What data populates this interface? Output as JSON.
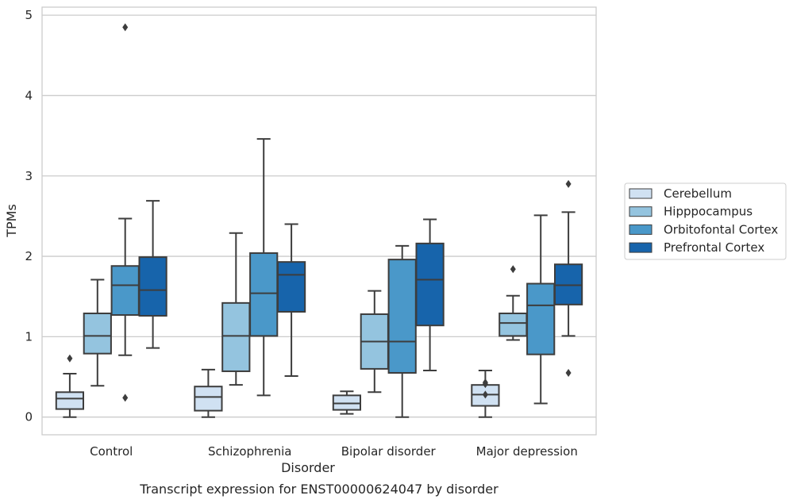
{
  "chart_data": {
    "type": "box",
    "title": "",
    "caption": "Transcript expression for ENST00000624047 by disorder",
    "xlabel": "Disorder",
    "ylabel": "TPMs",
    "ylim": [
      -0.22,
      5.1
    ],
    "yticks": [
      "0",
      "1",
      "2",
      "3",
      "4",
      "5"
    ],
    "grid": "horizontal",
    "legend_position": "right",
    "categories": [
      "Control",
      "Schizophrenia",
      "Bipolar disorder",
      "Major depression"
    ],
    "series": [
      {
        "name": "Cerebellum",
        "color": "#d0e1f2",
        "boxes": [
          {
            "whisker_low": 0.0,
            "q1": 0.1,
            "median": 0.23,
            "q3": 0.31,
            "whisker_high": 0.54,
            "outliers": [
              0.73
            ]
          },
          {
            "whisker_low": 0.0,
            "q1": 0.08,
            "median": 0.25,
            "q3": 0.38,
            "whisker_high": 0.59,
            "outliers": []
          },
          {
            "whisker_low": 0.04,
            "q1": 0.09,
            "median": 0.17,
            "q3": 0.27,
            "whisker_high": 0.32,
            "outliers": []
          },
          {
            "whisker_low": 0.0,
            "q1": 0.14,
            "median": 0.28,
            "q3": 0.4,
            "whisker_high": 0.58,
            "outliers": [
              0.28,
              0.41,
              0.43
            ]
          }
        ]
      },
      {
        "name": "Hipppocampus",
        "color": "#94c4df",
        "boxes": [
          {
            "whisker_low": 0.39,
            "q1": 0.79,
            "median": 1.01,
            "q3": 1.29,
            "whisker_high": 1.71,
            "outliers": []
          },
          {
            "whisker_low": 0.4,
            "q1": 0.57,
            "median": 1.01,
            "q3": 1.42,
            "whisker_high": 2.29,
            "outliers": []
          },
          {
            "whisker_low": 0.31,
            "q1": 0.6,
            "median": 0.94,
            "q3": 1.28,
            "whisker_high": 1.57,
            "outliers": []
          },
          {
            "whisker_low": 0.96,
            "q1": 1.01,
            "median": 1.17,
            "q3": 1.29,
            "whisker_high": 1.51,
            "outliers": [
              1.84
            ]
          }
        ]
      },
      {
        "name": "Orbitofontal Cortex",
        "color": "#4a98c9",
        "boxes": [
          {
            "whisker_low": 0.77,
            "q1": 1.27,
            "median": 1.64,
            "q3": 1.88,
            "whisker_high": 2.47,
            "outliers": [
              0.24,
              4.85
            ]
          },
          {
            "whisker_low": 0.27,
            "q1": 1.01,
            "median": 1.54,
            "q3": 2.04,
            "whisker_high": 3.46,
            "outliers": []
          },
          {
            "whisker_low": 0.0,
            "q1": 0.55,
            "median": 0.94,
            "q3": 1.96,
            "whisker_high": 2.13,
            "outliers": []
          },
          {
            "whisker_low": 0.17,
            "q1": 0.78,
            "median": 1.39,
            "q3": 1.66,
            "whisker_high": 2.51,
            "outliers": []
          }
        ]
      },
      {
        "name": "Prefrontal Cortex",
        "color": "#1764ab",
        "boxes": [
          {
            "whisker_low": 0.86,
            "q1": 1.26,
            "median": 1.58,
            "q3": 1.99,
            "whisker_high": 2.69,
            "outliers": []
          },
          {
            "whisker_low": 0.51,
            "q1": 1.31,
            "median": 1.77,
            "q3": 1.93,
            "whisker_high": 2.4,
            "outliers": []
          },
          {
            "whisker_low": 0.58,
            "q1": 1.14,
            "median": 1.71,
            "q3": 2.16,
            "whisker_high": 2.46,
            "outliers": []
          },
          {
            "whisker_low": 1.01,
            "q1": 1.4,
            "median": 1.64,
            "q3": 1.9,
            "whisker_high": 2.55,
            "outliers": [
              0.55,
              2.9
            ]
          }
        ]
      }
    ]
  }
}
